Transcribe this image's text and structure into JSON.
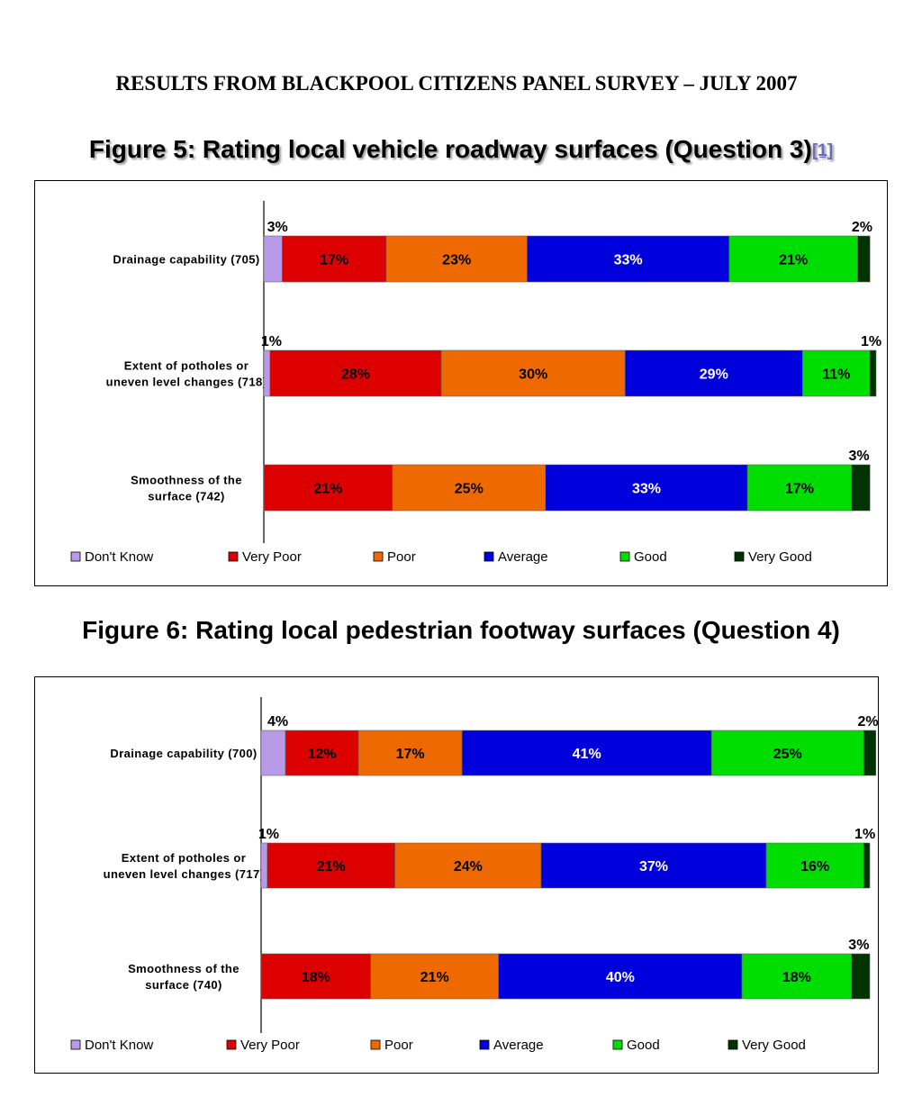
{
  "header": {
    "text": "RESULTS FROM BLACKPOOL CITIZENS PANEL SURVEY – JULY 2007"
  },
  "figure5": {
    "title": "Figure 5: Rating local vehicle roadway surfaces (Question 3)",
    "footnote_ref": "[1]"
  },
  "figure6": {
    "title": "Figure 6: Rating local pedestrian footway surfaces (Question 4)"
  },
  "colors": {
    "Don't Know": "#b99ae8",
    "Very Poor": "#dd0000",
    "Poor": "#ee6a00",
    "Average": "#0000dd",
    "Good": "#00dd00",
    "Very Good": "#003300"
  },
  "chart_data": [
    {
      "type": "bar",
      "orientation": "horizontal",
      "stacked": true,
      "title": "Figure 5: Rating local vehicle roadway surfaces (Question 3)",
      "categories": [
        [
          "Drainage capability (705)"
        ],
        [
          "Extent of potholes or",
          "uneven level changes (718)"
        ],
        [
          "Smoothness of the",
          "surface (742)"
        ]
      ],
      "series": [
        {
          "name": "Don't Know",
          "values": [
            3,
            1,
            0
          ]
        },
        {
          "name": "Very Poor",
          "values": [
            17,
            28,
            21
          ]
        },
        {
          "name": "Poor",
          "values": [
            23,
            30,
            25
          ]
        },
        {
          "name": "Average",
          "values": [
            33,
            29,
            33
          ]
        },
        {
          "name": "Good",
          "values": [
            21,
            11,
            17
          ]
        },
        {
          "name": "Very Good",
          "values": [
            2,
            1,
            3
          ]
        }
      ],
      "value_suffix": "%",
      "legend": "bottom",
      "grid": false
    },
    {
      "type": "bar",
      "orientation": "horizontal",
      "stacked": true,
      "title": "Figure 6: Rating local pedestrian footway surfaces (Question 4)",
      "categories": [
        [
          "Drainage capability (700)"
        ],
        [
          "Extent of potholes or",
          "uneven level changes (717)"
        ],
        [
          "Smoothness of the",
          "surface (740)"
        ]
      ],
      "series": [
        {
          "name": "Don't Know",
          "values": [
            4,
            1,
            0
          ]
        },
        {
          "name": "Very Poor",
          "values": [
            12,
            21,
            18
          ]
        },
        {
          "name": "Poor",
          "values": [
            17,
            24,
            21
          ]
        },
        {
          "name": "Average",
          "values": [
            41,
            37,
            40
          ]
        },
        {
          "name": "Good",
          "values": [
            25,
            16,
            18
          ]
        },
        {
          "name": "Very Good",
          "values": [
            2,
            1,
            3
          ]
        }
      ],
      "value_suffix": "%",
      "legend": "bottom",
      "grid": false
    }
  ]
}
